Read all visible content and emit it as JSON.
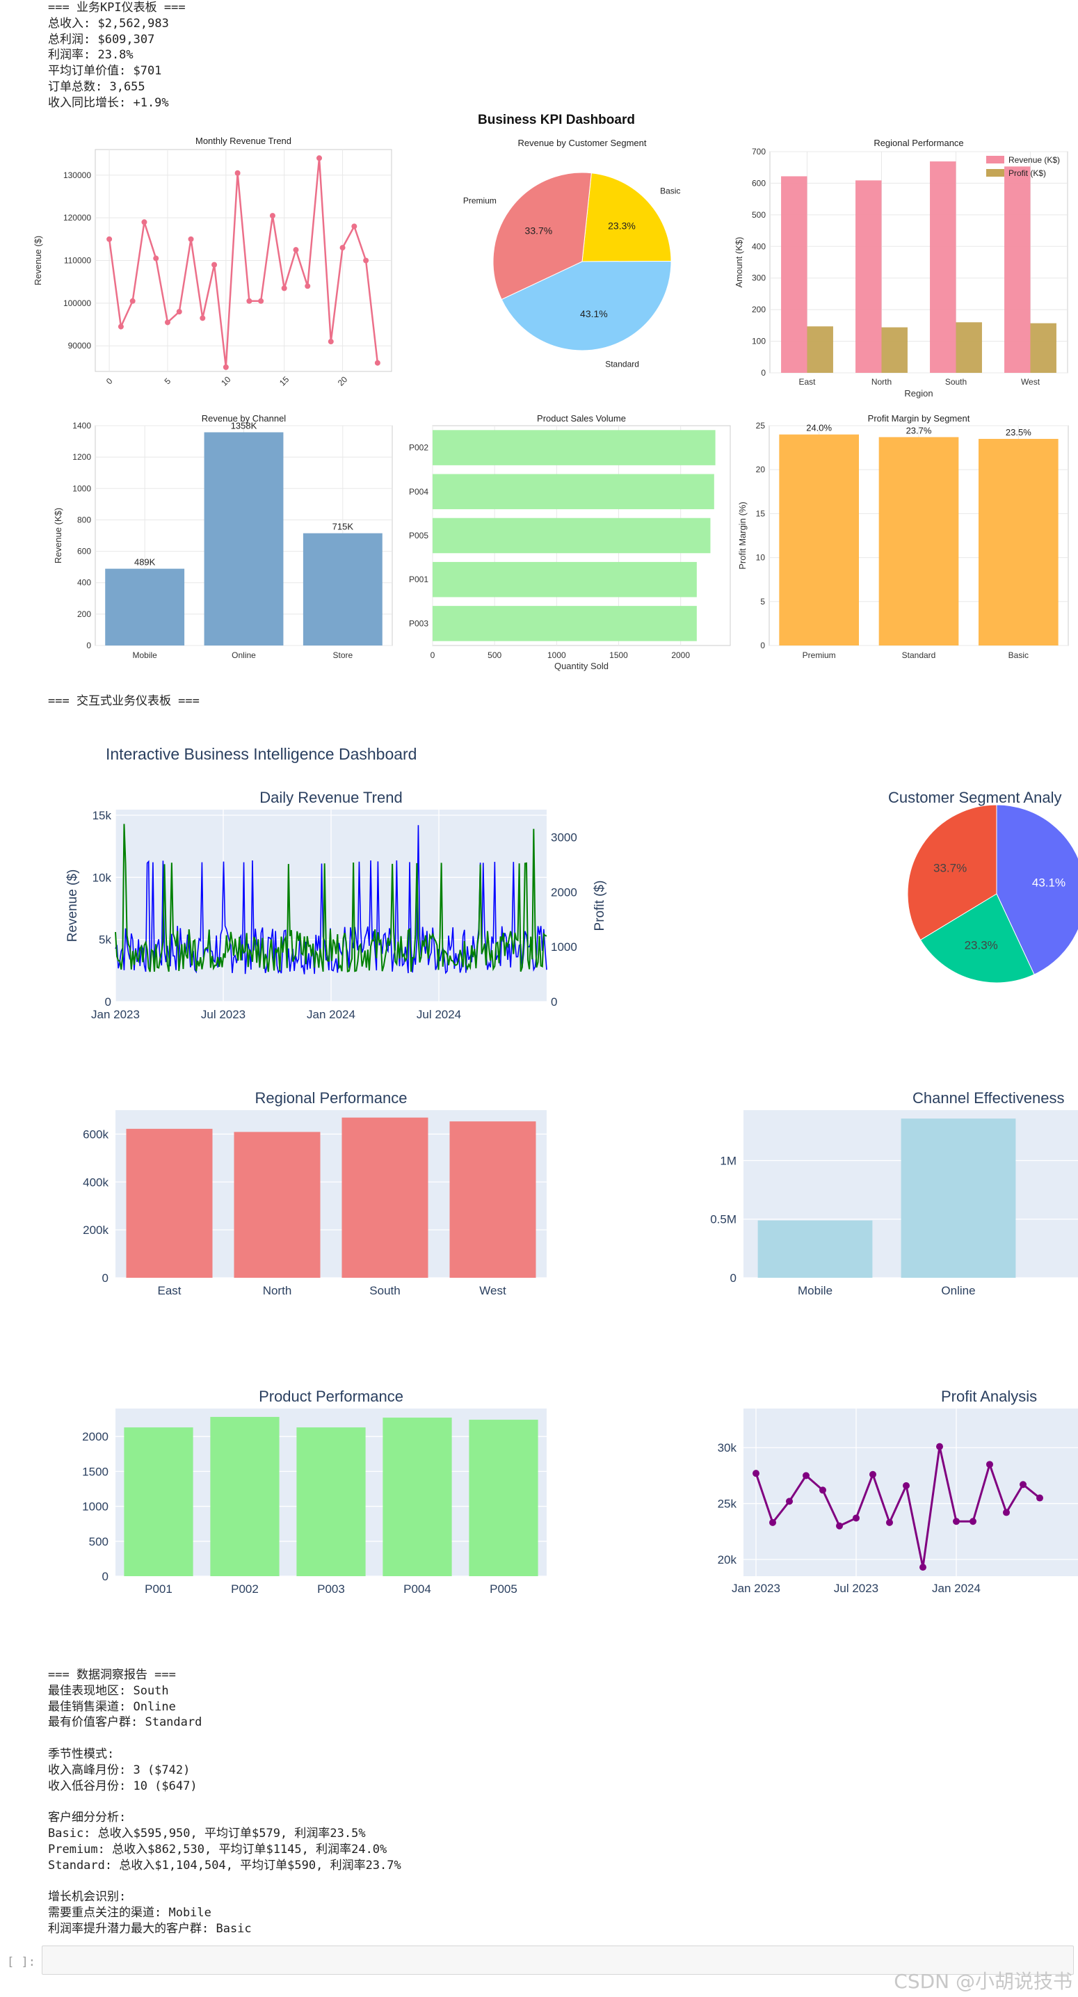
{
  "kpi_report": {
    "lines": [
      "=== 业务KPI仪表板 ===",
      "总收入: $2,562,983",
      "总利润: $609,307",
      "利润率: 23.8%",
      "平均订单价值: $701",
      "订单总数: 3,655",
      "收入同比增长: +1.9%"
    ]
  },
  "section2_heading": "=== 交互式业务仪表板 ===",
  "insights": {
    "lines": [
      "=== 数据洞察报告 ===",
      "最佳表现地区: South",
      "最佳销售渠道: Online",
      "最有价值客户群: Standard",
      "",
      "季节性模式:",
      "收入高峰月份: 3 ($742)",
      "收入低谷月份: 10 ($647)",
      "",
      "客户细分分析:",
      "Basic: 总收入$595,950, 平均订单$579, 利润率23.5%",
      "Premium: 总收入$862,530, 平均订单$1145, 利润率24.0%",
      "Standard: 总收入$1,104,504, 平均订单$590, 利润率23.7%",
      "",
      "增长机会识别:",
      "需要重点关注的渠道: Mobile",
      "利润率提升潜力最大的客户群: Basic"
    ]
  },
  "notebook": {
    "prompt": "[ ]:",
    "watermark": "CSDN @小胡说技书"
  },
  "colors": {
    "pink_line": "#ec6f89",
    "pie_premium": "#f08080",
    "pie_basic": "#ffd700",
    "pie_standard": "#87cefa",
    "rev_bar": "#f48ca0",
    "profit_bar": "#c4a556",
    "channel_bar": "#7aa6cc",
    "product_bar": "#a6f0a6",
    "margin_bar": "#ffb84d",
    "plotly_bg": "#e5ecf6",
    "plotly_red": "#ef553b",
    "plotly_blue": "#636efa",
    "plotly_green": "#00cc96",
    "region_red": "#f08080",
    "channel_light": "#add8e6",
    "product_light": "#90ee90",
    "purple": "#800080"
  },
  "chart_data": [
    {
      "id": "mpl-monthly",
      "type": "line",
      "suptitle": "Business KPI Dashboard",
      "title": "Monthly Revenue Trend",
      "xlabel": "",
      "ylabel": "Revenue ($)",
      "x": [
        0,
        1,
        2,
        3,
        4,
        5,
        6,
        7,
        8,
        9,
        10,
        11,
        12,
        13,
        14,
        15,
        16,
        17,
        18,
        19,
        20,
        21,
        22,
        23
      ],
      "values": [
        115000,
        94500,
        100500,
        119000,
        110500,
        95500,
        98000,
        115000,
        96500,
        109000,
        85000,
        130500,
        100500,
        100500,
        120500,
        103500,
        112500,
        104000,
        134000,
        91000,
        113000,
        118000,
        110000,
        86000
      ],
      "xticks": [
        "0",
        "5",
        "10",
        "15",
        "20"
      ],
      "yticks": [
        "90000",
        "100000",
        "110000",
        "120000",
        "130000"
      ],
      "ylim": [
        84000,
        136000
      ],
      "grid": true
    },
    {
      "id": "mpl-segment-pie",
      "type": "pie",
      "title": "Revenue by Customer Segment",
      "labels": [
        "Basic",
        "Standard",
        "Premium"
      ],
      "values": [
        23.3,
        43.1,
        33.7
      ],
      "pct_labels": [
        "23.3%",
        "43.1%",
        "33.7%"
      ]
    },
    {
      "id": "mpl-regional",
      "type": "bar",
      "title": "Regional Performance",
      "xlabel": "Region",
      "ylabel": "Amount (K$)",
      "categories": [
        "East",
        "North",
        "South",
        "West"
      ],
      "series": [
        {
          "name": "Revenue (K$)",
          "values": [
            622,
            609,
            669,
            653
          ]
        },
        {
          "name": "Profit (K$)",
          "values": [
            147,
            144,
            160,
            157
          ]
        }
      ],
      "yticks": [
        "0",
        "100",
        "200",
        "300",
        "400",
        "500",
        "600",
        "700"
      ],
      "ylim": [
        0,
        700
      ],
      "legend": "top-right",
      "grid": true
    },
    {
      "id": "mpl-channel",
      "type": "bar",
      "title": "Revenue by Channel",
      "xlabel": "",
      "ylabel": "Revenue (K$)",
      "categories": [
        "Mobile",
        "Online",
        "Store"
      ],
      "values": [
        489,
        1358,
        715
      ],
      "data_labels": [
        "489K",
        "1358K",
        "715K"
      ],
      "yticks": [
        "0",
        "200",
        "400",
        "600",
        "800",
        "1000",
        "1200",
        "1400"
      ],
      "ylim": [
        0,
        1400
      ],
      "grid": true
    },
    {
      "id": "mpl-product",
      "type": "bar",
      "orientation": "horizontal",
      "title": "Product Sales Volume",
      "xlabel": "Quantity Sold",
      "ylabel": "",
      "categories": [
        "P002",
        "P004",
        "P005",
        "P001",
        "P003"
      ],
      "values": [
        2280,
        2270,
        2240,
        2130,
        2130
      ],
      "xticks": [
        "0",
        "500",
        "1000",
        "1500",
        "2000"
      ],
      "xlim": [
        0,
        2400
      ],
      "grid": true
    },
    {
      "id": "mpl-margin",
      "type": "bar",
      "title": "Profit Margin by Segment",
      "xlabel": "",
      "ylabel": "Profit Margin (%)",
      "categories": [
        "Premium",
        "Standard",
        "Basic"
      ],
      "values": [
        24.0,
        23.7,
        23.5
      ],
      "data_labels": [
        "24.0%",
        "23.7%",
        "23.5%"
      ],
      "yticks": [
        "0",
        "5",
        "10",
        "15",
        "20",
        "25"
      ],
      "ylim": [
        0,
        25
      ],
      "grid": true
    },
    {
      "id": "plotly-daily",
      "type": "line",
      "dashboard_title": "Interactive Business Intelligence Dashboard",
      "title": "Daily Revenue Trend",
      "ylabel": "Revenue ($)",
      "y2label": "Profit ($)",
      "xticks": [
        "Jan 2023",
        "Jul 2023",
        "Jan 2024",
        "Jul 2024"
      ],
      "yticks": [
        "0",
        "5k",
        "10k",
        "15k"
      ],
      "y2ticks": [
        "0",
        "1000",
        "2000",
        "3000"
      ],
      "ylim": [
        0,
        15000
      ],
      "y2lim": [
        0,
        3500
      ],
      "series": [
        {
          "name": "Revenue",
          "color": "#0000ff"
        },
        {
          "name": "Profit",
          "color": "#008000"
        }
      ]
    },
    {
      "id": "plotly-segment",
      "type": "pie",
      "title": "Customer Segment Analy",
      "values": [
        43.1,
        23.3,
        33.7
      ],
      "pct_labels": [
        "43.1%",
        "23.3%",
        "33.7%"
      ]
    },
    {
      "id": "plotly-regional",
      "type": "bar",
      "title": "Regional Performance",
      "categories": [
        "East",
        "North",
        "South",
        "West"
      ],
      "values": [
        622000,
        609000,
        669000,
        653000
      ],
      "yticks": [
        "0",
        "200k",
        "400k",
        "600k"
      ],
      "ylim": [
        0,
        700000
      ]
    },
    {
      "id": "plotly-channel",
      "type": "bar",
      "title": "Channel Effectiveness",
      "categories": [
        "Mobile",
        "Online"
      ],
      "values": [
        489000,
        1358000
      ],
      "yticks": [
        "0",
        "0.5M",
        "1M"
      ],
      "ylim": [
        0,
        1430000
      ]
    },
    {
      "id": "plotly-product",
      "type": "bar",
      "title": "Product Performance",
      "categories": [
        "P001",
        "P002",
        "P003",
        "P004",
        "P005"
      ],
      "values": [
        2130,
        2280,
        2130,
        2270,
        2240
      ],
      "yticks": [
        "0",
        "500",
        "1000",
        "1500",
        "2000"
      ],
      "ylim": [
        0,
        2400
      ]
    },
    {
      "id": "plotly-profit",
      "type": "line",
      "title": "Profit Analysis",
      "xticks": [
        "Jan 2023",
        "Jul 2023",
        "Jan 2024"
      ],
      "yticks": [
        "20k",
        "25k",
        "30k"
      ],
      "ylim": [
        18500,
        33500
      ],
      "values": [
        27700,
        23300,
        25200,
        27500,
        26200,
        23000,
        23700,
        27600,
        23300,
        26600,
        19300,
        30100,
        23400,
        23400,
        28500,
        24200,
        26700,
        25500
      ]
    }
  ]
}
